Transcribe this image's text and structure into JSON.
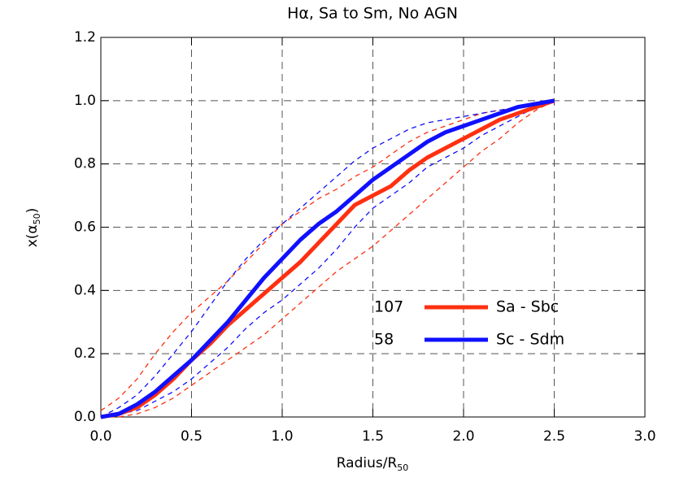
{
  "chart_data": {
    "type": "line",
    "title": "Hα, Sa to Sm, No AGN",
    "xlabel": {
      "text": "Radius/R",
      "sub": "50"
    },
    "ylabel": {
      "text": "x(α",
      "sub": "50",
      "tail": ")"
    },
    "x": [
      0,
      0.1,
      0.2,
      0.3,
      0.4,
      0.5,
      0.6,
      0.7,
      0.8,
      0.9,
      1.0,
      1.1,
      1.2,
      1.3,
      1.4,
      1.5,
      1.6,
      1.7,
      1.8,
      1.9,
      2.0,
      2.1,
      2.2,
      2.3,
      2.4,
      2.5
    ],
    "series": [
      {
        "color": "#ff3010",
        "dash": true,
        "width": 1.3,
        "values": [
          0.02,
          0.06,
          0.12,
          0.2,
          0.27,
          0.33,
          0.38,
          0.43,
          0.49,
          0.55,
          0.61,
          0.65,
          0.69,
          0.72,
          0.76,
          0.79,
          0.83,
          0.87,
          0.9,
          0.92,
          0.94,
          0.96,
          0.97,
          0.98,
          0.99,
          1.0
        ]
      },
      {
        "color": "#ff3010",
        "dash": true,
        "width": 1.3,
        "values": [
          0,
          0,
          0.01,
          0.03,
          0.06,
          0.1,
          0.14,
          0.18,
          0.22,
          0.26,
          0.31,
          0.36,
          0.41,
          0.46,
          0.5,
          0.54,
          0.59,
          0.64,
          0.69,
          0.74,
          0.79,
          0.84,
          0.88,
          0.93,
          0.97,
          1.0
        ]
      },
      {
        "color": "#1010ff",
        "dash": true,
        "width": 1.3,
        "values": [
          0,
          0.03,
          0.07,
          0.13,
          0.2,
          0.27,
          0.35,
          0.43,
          0.5,
          0.56,
          0.61,
          0.66,
          0.71,
          0.76,
          0.81,
          0.85,
          0.88,
          0.91,
          0.93,
          0.94,
          0.95,
          0.96,
          0.97,
          0.98,
          0.99,
          1.0
        ]
      },
      {
        "color": "#1010ff",
        "dash": true,
        "width": 1.3,
        "values": [
          0,
          0.01,
          0.02,
          0.05,
          0.08,
          0.12,
          0.17,
          0.22,
          0.28,
          0.33,
          0.37,
          0.42,
          0.47,
          0.53,
          0.6,
          0.66,
          0.7,
          0.74,
          0.79,
          0.82,
          0.85,
          0.89,
          0.92,
          0.95,
          0.98,
          1.0
        ]
      },
      {
        "name": "Sa - Sbc",
        "count": "107",
        "color": "#ff3010",
        "dash": false,
        "width": 5,
        "values": [
          0,
          0.01,
          0.03,
          0.07,
          0.12,
          0.18,
          0.23,
          0.29,
          0.34,
          0.39,
          0.44,
          0.49,
          0.55,
          0.61,
          0.67,
          0.7,
          0.73,
          0.78,
          0.82,
          0.85,
          0.88,
          0.91,
          0.94,
          0.96,
          0.98,
          1.0
        ]
      },
      {
        "name": "Sc - Sdm",
        "count": "58",
        "color": "#1010ff",
        "dash": false,
        "width": 5,
        "values": [
          0,
          0.01,
          0.04,
          0.08,
          0.13,
          0.18,
          0.24,
          0.3,
          0.37,
          0.44,
          0.5,
          0.56,
          0.61,
          0.65,
          0.7,
          0.75,
          0.79,
          0.83,
          0.87,
          0.9,
          0.92,
          0.94,
          0.96,
          0.98,
          0.99,
          1.0
        ]
      }
    ],
    "xlim": [
      0,
      3
    ],
    "ylim": [
      0,
      1.2
    ],
    "xticks": [
      {
        "value": 0,
        "label": "0.0"
      },
      {
        "value": 0.5,
        "label": "0.5"
      },
      {
        "value": 1,
        "label": "1.0"
      },
      {
        "value": 1.5,
        "label": "1.5"
      },
      {
        "value": 2,
        "label": "2.0"
      },
      {
        "value": 2.5,
        "label": "2.5"
      },
      {
        "value": 3,
        "label": "3.0"
      }
    ],
    "yticks": [
      {
        "value": 0,
        "label": "0.0"
      },
      {
        "value": 0.2,
        "label": "0.2"
      },
      {
        "value": 0.4,
        "label": "0.4"
      },
      {
        "value": 0.6,
        "label": "0.6"
      },
      {
        "value": 0.8,
        "label": "0.8"
      },
      {
        "value": 1,
        "label": "1.0"
      },
      {
        "value": 1.2,
        "label": "1.2"
      }
    ],
    "grid": true
  }
}
